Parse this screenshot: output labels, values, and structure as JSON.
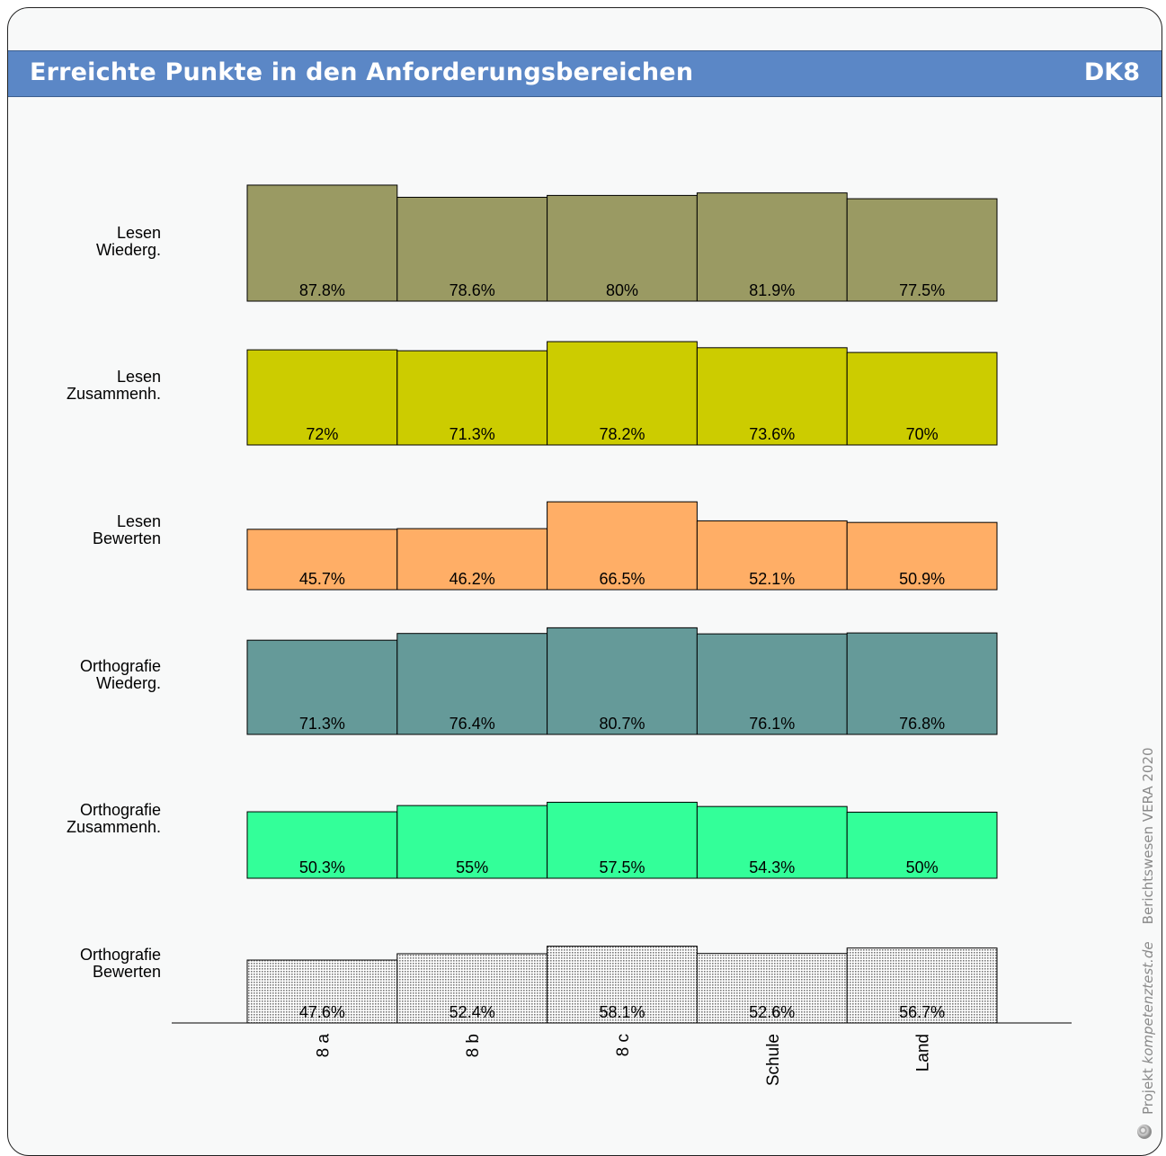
{
  "header": {
    "title": "Erreichte Punkte in den Anforderungsbereichen",
    "badge": "DK8"
  },
  "side_caption": {
    "prefix": "Projekt ",
    "site": "kompetenztest.de",
    "source": "Berichtswesen VERA 2020"
  },
  "chart_data": {
    "type": "bar",
    "categories": [
      "8 a",
      "8 b",
      "8 c",
      "Schule",
      "Land"
    ],
    "ylim": [
      0,
      100
    ],
    "groups": [
      {
        "label_line1": "Lesen",
        "label_line2": "Wiederg.",
        "color": "#9a9a63",
        "values": [
          87.8,
          78.6,
          80,
          81.9,
          77.5
        ],
        "value_labels": [
          "87.8%",
          "78.6%",
          "80%",
          "81.9%",
          "77.5%"
        ]
      },
      {
        "label_line1": "Lesen",
        "label_line2": "Zusammenh.",
        "color": "#cccc00",
        "values": [
          72,
          71.3,
          78.2,
          73.6,
          70
        ],
        "value_labels": [
          "72%",
          "71.3%",
          "78.2%",
          "73.6%",
          "70%"
        ]
      },
      {
        "label_line1": "Lesen",
        "label_line2": "Bewerten",
        "color": "#ffae66",
        "values": [
          45.7,
          46.2,
          66.5,
          52.1,
          50.9
        ],
        "value_labels": [
          "45.7%",
          "46.2%",
          "66.5%",
          "52.1%",
          "50.9%"
        ]
      },
      {
        "label_line1": "Orthografie",
        "label_line2": "Wiederg.",
        "color": "#659a99",
        "values": [
          71.3,
          76.4,
          80.7,
          76.1,
          76.8
        ],
        "value_labels": [
          "71.3%",
          "76.4%",
          "80.7%",
          "76.1%",
          "76.8%"
        ]
      },
      {
        "label_line1": "Orthografie",
        "label_line2": "Zusammenh.",
        "color": "#33ff99",
        "values": [
          50.3,
          55,
          57.5,
          54.3,
          50
        ],
        "value_labels": [
          "50.3%",
          "55%",
          "57.5%",
          "54.3%",
          "50%"
        ]
      },
      {
        "label_line1": "Orthografie",
        "label_line2": "Bewerten",
        "color": "dotted-gray",
        "values": [
          47.6,
          52.4,
          58.1,
          52.6,
          56.7
        ],
        "value_labels": [
          "47.6%",
          "52.4%",
          "58.1%",
          "52.6%",
          "56.7%"
        ]
      }
    ]
  }
}
